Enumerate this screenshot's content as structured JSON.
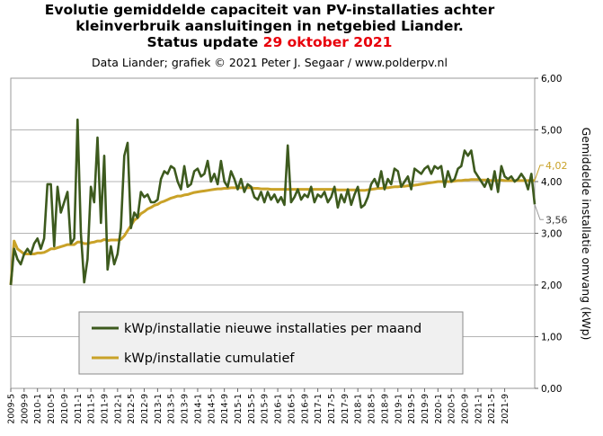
{
  "header": {
    "title_line1": "Evolutie gemiddelde capaciteit van PV-installaties achter",
    "title_line2": "kleinverbruik aansluitingen in netgebied Liander.",
    "title_line3_prefix": "Status update ",
    "title_line3_date": "29 oktober 2021",
    "subtitle": "Data Liander; grafiek © 2021 Peter J. Segaar / www.polderpv.nl"
  },
  "chart_data": {
    "type": "line",
    "title": "Evolutie gemiddelde capaciteit van PV-installaties achter kleinverbruik aansluitingen in netgebied Liander. Status update 29 oktober 2021",
    "subtitle": "Data Liander; grafiek © 2021 Peter J. Segaar / www.polderpv.nl",
    "xlabel": "",
    "ylabel": "Gemiddelde installatie omvang (kWp)",
    "ylim": [
      0,
      6
    ],
    "y_ticks": [
      "0,00",
      "1,00",
      "2,00",
      "3,00",
      "4,00",
      "5,00",
      "6,00"
    ],
    "y_axis_side": "right",
    "grid": "horizontal",
    "x_start": "2009-5",
    "x_tick_labels": [
      "2009-5",
      "2009-9",
      "2010-1",
      "2010-5",
      "2010-9",
      "2011-1",
      "2011-5",
      "2011-9",
      "2012-1",
      "2012-5",
      "2012-9",
      "2013-1",
      "2013-5",
      "2013-9",
      "2014-1",
      "2014-5",
      "2014-9",
      "2015-1",
      "2015-5",
      "2015-9",
      "2016-1",
      "2016-5",
      "2016-9",
      "2017-1",
      "2017-5",
      "2017-9",
      "2018-1",
      "2018-5",
      "2018-9",
      "2019-1",
      "2019-5",
      "2019-9",
      "2020-1",
      "2020-5",
      "2020-9",
      "2021-1",
      "2021-5",
      "2021-9"
    ],
    "legend_position": "bottom-left inside plot",
    "series": [
      {
        "name": "kWp/installatie nieuwe installaties per maand",
        "color": "#3d5a1e",
        "values": [
          2.0,
          2.7,
          2.5,
          2.4,
          2.6,
          2.7,
          2.6,
          2.8,
          2.9,
          2.7,
          2.9,
          3.95,
          3.95,
          2.75,
          3.9,
          3.4,
          3.6,
          3.8,
          2.8,
          2.9,
          5.2,
          3.0,
          2.05,
          2.5,
          3.9,
          3.6,
          4.85,
          3.2,
          4.5,
          2.3,
          2.75,
          2.4,
          2.6,
          3.1,
          4.5,
          4.75,
          3.1,
          3.4,
          3.3,
          3.8,
          3.7,
          3.75,
          3.6,
          3.6,
          3.65,
          4.05,
          4.2,
          4.15,
          4.3,
          4.25,
          4.0,
          3.85,
          4.3,
          3.9,
          3.95,
          4.2,
          4.25,
          4.1,
          4.15,
          4.4,
          4.0,
          4.15,
          3.95,
          4.4,
          4.0,
          3.9,
          4.2,
          4.05,
          3.85,
          4.05,
          3.8,
          3.95,
          3.9,
          3.7,
          3.65,
          3.8,
          3.6,
          3.8,
          3.65,
          3.75,
          3.6,
          3.7,
          3.55,
          4.7,
          3.6,
          3.7,
          3.85,
          3.65,
          3.75,
          3.7,
          3.9,
          3.6,
          3.75,
          3.7,
          3.8,
          3.6,
          3.7,
          3.9,
          3.5,
          3.75,
          3.6,
          3.85,
          3.55,
          3.75,
          3.9,
          3.5,
          3.55,
          3.7,
          3.95,
          4.05,
          3.9,
          4.2,
          3.85,
          4.05,
          3.95,
          4.25,
          4.2,
          3.9,
          4.0,
          4.1,
          3.85,
          4.25,
          4.2,
          4.15,
          4.25,
          4.3,
          4.15,
          4.3,
          4.25,
          4.3,
          3.9,
          4.2,
          4.0,
          4.05,
          4.25,
          4.3,
          4.6,
          4.5,
          4.6,
          4.2,
          4.1,
          4.0,
          3.9,
          4.05,
          3.85,
          4.2,
          3.8,
          4.3,
          4.1,
          4.05,
          4.1,
          4.0,
          4.05,
          4.15,
          4.05,
          3.85,
          4.15,
          3.56
        ]
      },
      {
        "name": "kWp/installatie cumulatief",
        "color": "#c9a228",
        "values": [
          2.0,
          2.85,
          2.7,
          2.65,
          2.6,
          2.6,
          2.6,
          2.6,
          2.62,
          2.62,
          2.63,
          2.66,
          2.7,
          2.7,
          2.72,
          2.74,
          2.76,
          2.78,
          2.78,
          2.78,
          2.83,
          2.83,
          2.8,
          2.8,
          2.82,
          2.83,
          2.85,
          2.85,
          2.88,
          2.86,
          2.87,
          2.87,
          2.87,
          2.88,
          2.95,
          3.05,
          3.15,
          3.25,
          3.3,
          3.38,
          3.42,
          3.47,
          3.5,
          3.54,
          3.56,
          3.6,
          3.62,
          3.65,
          3.68,
          3.7,
          3.72,
          3.72,
          3.74,
          3.75,
          3.77,
          3.79,
          3.8,
          3.81,
          3.82,
          3.83,
          3.84,
          3.85,
          3.86,
          3.86,
          3.87,
          3.87,
          3.88,
          3.88,
          3.88,
          3.88,
          3.88,
          3.88,
          3.88,
          3.87,
          3.87,
          3.86,
          3.86,
          3.86,
          3.85,
          3.85,
          3.85,
          3.85,
          3.85,
          3.85,
          3.85,
          3.85,
          3.85,
          3.85,
          3.85,
          3.85,
          3.85,
          3.85,
          3.85,
          3.85,
          3.85,
          3.85,
          3.85,
          3.85,
          3.84,
          3.84,
          3.84,
          3.84,
          3.84,
          3.84,
          3.84,
          3.83,
          3.83,
          3.84,
          3.85,
          3.86,
          3.87,
          3.87,
          3.88,
          3.88,
          3.89,
          3.9,
          3.9,
          3.91,
          3.91,
          3.92,
          3.92,
          3.93,
          3.94,
          3.95,
          3.96,
          3.97,
          3.98,
          3.99,
          4.0,
          4.0,
          4.0,
          4.0,
          4.0,
          4.01,
          4.02,
          4.02,
          4.03,
          4.03,
          4.04,
          4.04,
          4.04,
          4.03,
          4.03,
          4.03,
          4.02,
          4.02,
          4.02,
          4.03,
          4.02,
          4.02,
          4.02,
          4.02,
          4.02,
          4.02,
          4.02,
          4.02,
          4.02,
          4.02
        ]
      }
    ],
    "annotations": [
      {
        "label": "4,02",
        "series": "kWp/installatie cumulatief",
        "value": 4.02
      },
      {
        "label": "3,56",
        "series": "kWp/installatie nieuwe installaties per maand",
        "value": 3.56
      }
    ]
  }
}
